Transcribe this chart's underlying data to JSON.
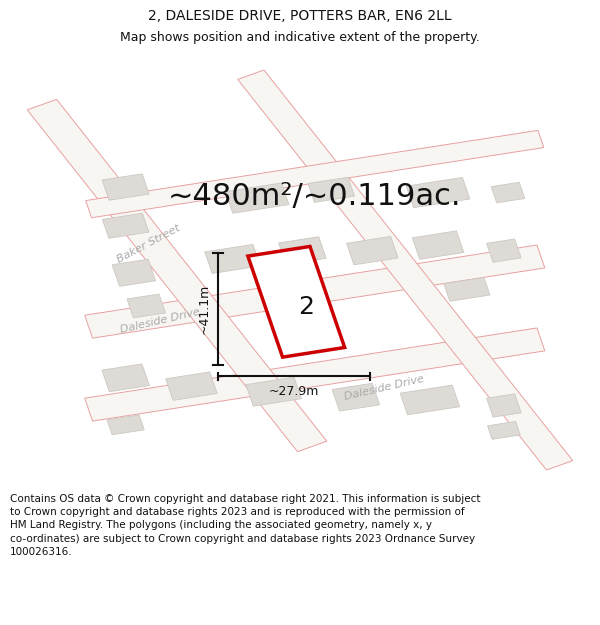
{
  "title": "2, DALESIDE DRIVE, POTTERS BAR, EN6 2LL",
  "subtitle": "Map shows position and indicative extent of the property.",
  "area_label": "~480m²/~0.119ac.",
  "property_number": "2",
  "dim_height": "~41.1m",
  "dim_width": "~27.9m",
  "footer": "Contains OS data © Crown copyright and database right 2021. This information is subject to Crown copyright and database rights 2023 and is reproduced with the permission of HM Land Registry. The polygons (including the associated geometry, namely x, y co-ordinates) are subject to Crown copyright and database rights 2023 Ordnance Survey 100026316.",
  "map_bg": "#eeebe6",
  "road_fill": "#f8f6f3",
  "road_stroke": "#e8a0a0",
  "building_fill": "#dedad5",
  "building_stroke": "#ccc8c2",
  "property_stroke": "#cc0000",
  "property_fill": "#ffffff",
  "dim_color": "#111111",
  "road_label_color": "#aaaaaa",
  "title_color": "#111111",
  "footer_color": "#111111",
  "footer_bg": "#ffffff",
  "title_fontsize": 10,
  "subtitle_fontsize": 9,
  "area_fontsize": 22,
  "dim_fontsize": 9,
  "road_label_fontsize": 8,
  "prop_num_fontsize": 18
}
